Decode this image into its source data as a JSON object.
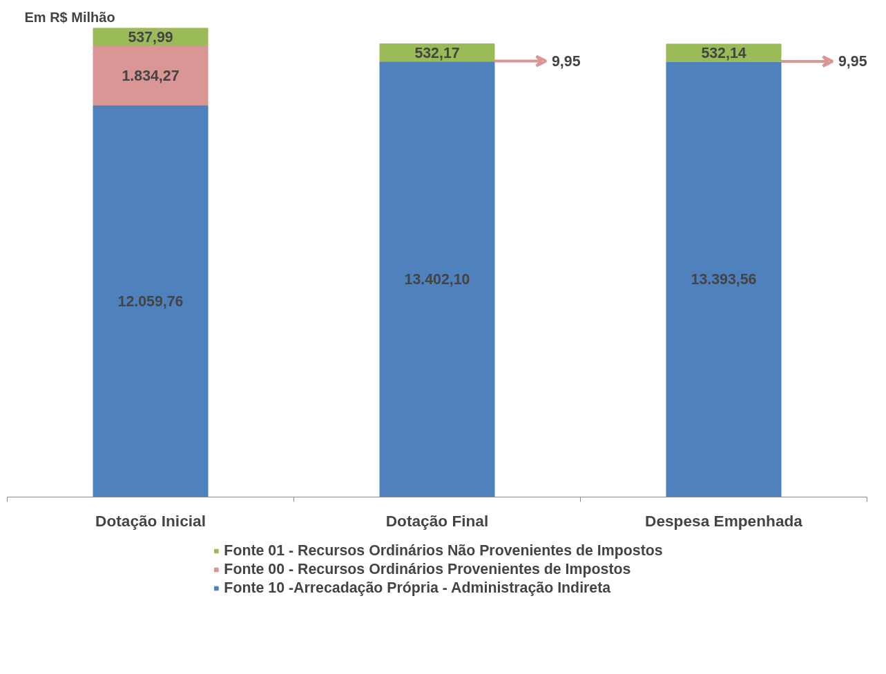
{
  "chart_data": {
    "type": "bar",
    "title": "Em R$ Milhão",
    "stacked": true,
    "legend": "bottom",
    "grid": false,
    "categories": [
      "Dotação Inicial",
      "Dotação Final",
      "Despesa Empenhada"
    ],
    "series": [
      {
        "name": "Fonte 10 -Arrecadação Própria - Administração Indireta",
        "color": "#4f81bd",
        "values": [
          12059.76,
          13402.1,
          13393.56
        ],
        "value_labels": [
          "12.059,76",
          "13.402,10",
          "13.393,56"
        ]
      },
      {
        "name": "Fonte 00 - Recursos Ordinários Provenientes de Impostos",
        "color": "#d99694",
        "values": [
          1834.27,
          9.95,
          9.95
        ],
        "value_labels": [
          "1.834,27",
          "9,95",
          "9,95"
        ]
      },
      {
        "name": "Fonte 01 - Recursos Ordinários Não Provenientes de Impostos",
        "color": "#9bbb59",
        "values": [
          537.99,
          532.17,
          532.14
        ],
        "value_labels": [
          "537,99",
          "532,17",
          "532,14"
        ]
      }
    ]
  }
}
